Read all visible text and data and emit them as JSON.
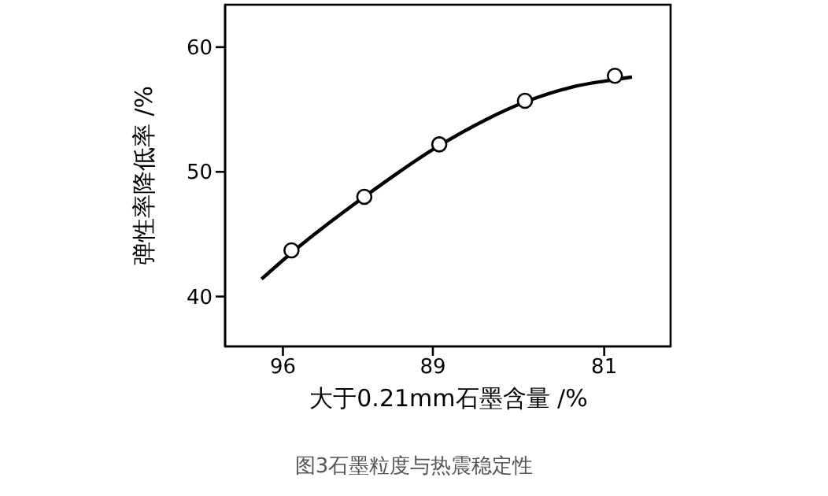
{
  "chart_data": {
    "type": "scatter",
    "title": "图3石墨粒度与热震稳定性",
    "xlabel": "大于0.21mm石墨含量 /%",
    "ylabel": "弹性率降低率 /%",
    "xlim": [
      98.7,
      77.9
    ],
    "xticks": [
      96,
      89,
      81
    ],
    "ylim": [
      36,
      63.4
    ],
    "yticks": [
      40,
      50,
      60
    ],
    "grid": false,
    "marker": "circle",
    "series": [
      {
        "color": "#000000",
        "x": [
          95.6,
          92.2,
          88.7,
          84.7,
          80.5
        ],
        "values": [
          43.7,
          48.0,
          52.2,
          55.7,
          57.7
        ]
      },
      {
        "type": "line",
        "color": "#000000",
        "marker": "none",
        "x": [
          97.0,
          95.6,
          92.2,
          88.7,
          86.5,
          84.7,
          82.5,
          80.5,
          79.7
        ],
        "values": [
          41.4,
          43.5,
          48.0,
          52.1,
          54.2,
          55.6,
          56.8,
          57.4,
          57.6
        ]
      }
    ]
  }
}
